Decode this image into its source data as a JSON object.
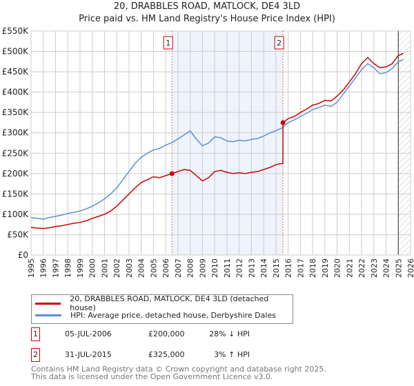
{
  "title": "20, DRABBLES ROAD, MATLOCK, DE4 3LD",
  "subtitle": "Price paid vs. HM Land Registry's House Price Index (HPI)",
  "chart_data": {
    "type": "line",
    "xlim": [
      1995,
      2026
    ],
    "ylim": [
      0,
      550000
    ],
    "yticks": [
      {
        "v": 0,
        "label": "£0"
      },
      {
        "v": 50000,
        "label": "£50K"
      },
      {
        "v": 100000,
        "label": "£100K"
      },
      {
        "v": 150000,
        "label": "£150K"
      },
      {
        "v": 200000,
        "label": "£200K"
      },
      {
        "v": 250000,
        "label": "£250K"
      },
      {
        "v": 300000,
        "label": "£300K"
      },
      {
        "v": 350000,
        "label": "£350K"
      },
      {
        "v": 400000,
        "label": "£400K"
      },
      {
        "v": 450000,
        "label": "£450K"
      },
      {
        "v": 500000,
        "label": "£500K"
      },
      {
        "v": 550000,
        "label": "£550K"
      }
    ],
    "xticks": [
      "1995",
      "1996",
      "1997",
      "1998",
      "1999",
      "2000",
      "2001",
      "2002",
      "2003",
      "2004",
      "2005",
      "2006",
      "2007",
      "2008",
      "2009",
      "2010",
      "2011",
      "2012",
      "2013",
      "2014",
      "2015",
      "2016",
      "2017",
      "2018",
      "2019",
      "2020",
      "2021",
      "2022",
      "2023",
      "2024",
      "2025",
      "2026"
    ],
    "grid": true,
    "series": [
      {
        "name": "20, DRABBLES ROAD, MATLOCK, DE4 3LD (detached house)",
        "color": "#cc0000",
        "x": [
          1995,
          1995.5,
          1996,
          1996.5,
          1997,
          1997.5,
          1998,
          1998.5,
          1999,
          1999.5,
          2000,
          2000.5,
          2001,
          2001.5,
          2002,
          2002.5,
          2003,
          2003.5,
          2004,
          2004.5,
          2005,
          2005.5,
          2006,
          2006.5,
          2007,
          2007.5,
          2008,
          2008.5,
          2009,
          2009.5,
          2010,
          2010.5,
          2011,
          2011.5,
          2012,
          2012.5,
          2013,
          2013.5,
          2014,
          2014.5,
          2015,
          2015.57,
          2015.58,
          2016,
          2016.5,
          2017,
          2017.5,
          2018,
          2018.5,
          2019,
          2019.5,
          2020,
          2020.5,
          2021,
          2021.5,
          2022,
          2022.5,
          2023,
          2023.5,
          2024,
          2024.5,
          2025,
          2025.4
        ],
        "y": [
          68000,
          66000,
          65000,
          67000,
          70000,
          72000,
          75000,
          78000,
          80000,
          84000,
          90000,
          95000,
          100000,
          108000,
          120000,
          135000,
          150000,
          165000,
          178000,
          185000,
          192000,
          190000,
          195000,
          200000,
          205000,
          210000,
          208000,
          195000,
          182000,
          190000,
          205000,
          208000,
          203000,
          200000,
          202000,
          200000,
          203000,
          205000,
          210000,
          215000,
          222000,
          225000,
          325000,
          335000,
          340000,
          350000,
          358000,
          368000,
          372000,
          380000,
          378000,
          390000,
          405000,
          425000,
          445000,
          470000,
          485000,
          470000,
          460000,
          462000,
          470000,
          490000,
          495000
        ]
      },
      {
        "name": "HPI: Average price, detached house, Derbyshire Dales",
        "color": "#5b8fd6",
        "x": [
          1995,
          1995.5,
          1996,
          1996.5,
          1997,
          1997.5,
          1998,
          1998.5,
          1999,
          1999.5,
          2000,
          2000.5,
          2001,
          2001.5,
          2002,
          2002.5,
          2003,
          2003.5,
          2004,
          2004.5,
          2005,
          2005.5,
          2006,
          2006.5,
          2007,
          2007.5,
          2008,
          2008.5,
          2009,
          2009.5,
          2010,
          2010.5,
          2011,
          2011.5,
          2012,
          2012.5,
          2013,
          2013.5,
          2014,
          2014.5,
          2015,
          2015.5,
          2016,
          2016.5,
          2017,
          2017.5,
          2018,
          2018.5,
          2019,
          2019.5,
          2020,
          2020.5,
          2021,
          2021.5,
          2022,
          2022.5,
          2023,
          2023.5,
          2024,
          2024.5,
          2025,
          2025.4
        ],
        "y": [
          92000,
          90000,
          88000,
          92000,
          95000,
          98000,
          102000,
          105000,
          108000,
          113000,
          120000,
          128000,
          138000,
          150000,
          165000,
          185000,
          205000,
          225000,
          240000,
          250000,
          258000,
          262000,
          270000,
          276000,
          285000,
          295000,
          305000,
          285000,
          268000,
          275000,
          290000,
          288000,
          280000,
          278000,
          282000,
          280000,
          284000,
          286000,
          292000,
          300000,
          305000,
          312000,
          325000,
          332000,
          340000,
          348000,
          357000,
          362000,
          368000,
          365000,
          375000,
          395000,
          415000,
          435000,
          455000,
          470000,
          460000,
          445000,
          448000,
          458000,
          475000,
          480000
        ]
      }
    ],
    "sales": [
      {
        "n": "1",
        "x": 2006.51,
        "price": 200000
      },
      {
        "n": "2",
        "x": 2015.58,
        "price": 325000
      }
    ],
    "forecast_from": 2025.0,
    "legend": "below"
  },
  "legend": {
    "property": "20, DRABBLES ROAD, MATLOCK, DE4 3LD (detached house)",
    "hpi": "HPI: Average price, detached house, Derbyshire Dales"
  },
  "transactions": [
    {
      "n": "1",
      "date": "05-JUL-2006",
      "price": "£200,000",
      "hpi": "28% ↓ HPI"
    },
    {
      "n": "2",
      "date": "31-JUL-2015",
      "price": "£325,000",
      "hpi": "3% ↑ HPI"
    }
  ],
  "footer": {
    "line1": "Contains HM Land Registry data © Crown copyright and database right 2025.",
    "line2": "This data is licensed under the Open Government Licence v3.0."
  }
}
